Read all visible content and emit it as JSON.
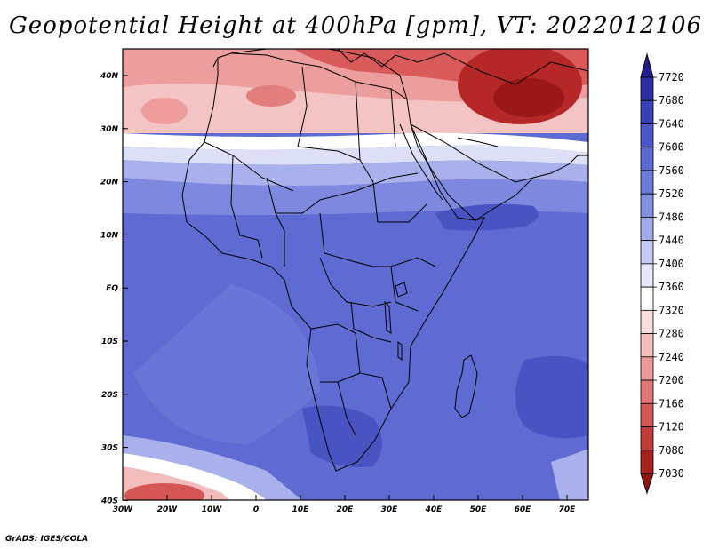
{
  "title": "Geopotential Height at 400hPa [gpm], VT: 2022012106",
  "footer": "GrADS: IGES/COLA",
  "map": {
    "region": "Africa",
    "variable": "Geopotential Height",
    "level": "400hPa",
    "units": "gpm",
    "valid_time": "2022012106",
    "lat_labels": [
      "40N",
      "30N",
      "20N",
      "10N",
      "EQ",
      "10S",
      "20S",
      "30S",
      "40S"
    ],
    "lon_labels": [
      "30W",
      "20W",
      "10W",
      "0",
      "10E",
      "20E",
      "30E",
      "40E",
      "50E",
      "60E",
      "70E"
    ]
  },
  "colorbar": {
    "levels": [
      "7720",
      "7680",
      "7640",
      "7600",
      "7560",
      "7520",
      "7480",
      "7440",
      "7400",
      "7360",
      "7320",
      "7280",
      "7240",
      "7200",
      "7160",
      "7120",
      "7080",
      "7030"
    ],
    "colors": [
      "#241c8e",
      "#2e2fa3",
      "#3a41b8",
      "#4a55c8",
      "#5c68d2",
      "#6f7bdb",
      "#8590e3",
      "#a2aaea",
      "#c4c9f2",
      "#e6e8fa",
      "#ffffff",
      "#f9dede",
      "#f2bcbc",
      "#ea9a9a",
      "#e07676",
      "#d45656",
      "#c33a3a",
      "#a81f1f",
      "#8e1414"
    ]
  }
}
